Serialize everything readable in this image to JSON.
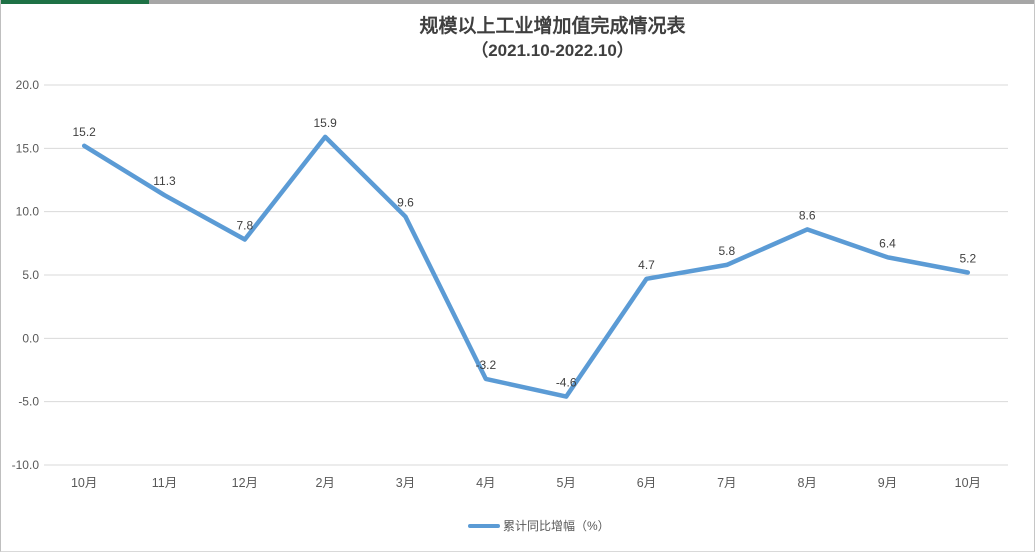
{
  "window": {
    "accent_bar": {
      "green": "#1e7145",
      "gray": "#a6a6a6"
    }
  },
  "chart_data": {
    "type": "line",
    "title": "规模以上工业增加值完成情况表",
    "subtitle": "（2021.10-2022.10）",
    "categories": [
      "10月",
      "11月",
      "12月",
      "2月",
      "3月",
      "4月",
      "5月",
      "6月",
      "7月",
      "8月",
      "9月",
      "10月"
    ],
    "series": [
      {
        "name": "累计同比增幅（%）",
        "values": [
          15.2,
          11.3,
          7.8,
          15.9,
          9.6,
          -3.2,
          -4.6,
          4.7,
          5.8,
          8.6,
          6.4,
          5.2
        ],
        "color": "#5b9bd5"
      }
    ],
    "data_labels": [
      15.2,
      11.3,
      7.8,
      15.9,
      9.6,
      -3.2,
      -4.6,
      4.7,
      5.8,
      8.6,
      6.4,
      5.2
    ],
    "ylim": [
      -10,
      20
    ],
    "ytick_step": 5,
    "ytick_labels": [
      "20.0",
      "15.0",
      "10.0",
      "5.0",
      "0.0",
      "-5.0",
      "-10.0"
    ],
    "xlabel": "",
    "ylabel": "",
    "grid": true,
    "legend_position": "bottom",
    "colors": {
      "gridline": "#d9d9d9",
      "tick_text": "#595959",
      "data_label_text": "#404040",
      "title_text": "#3f3f3f"
    }
  },
  "legend": {
    "label": "累计同比增幅（%）"
  }
}
